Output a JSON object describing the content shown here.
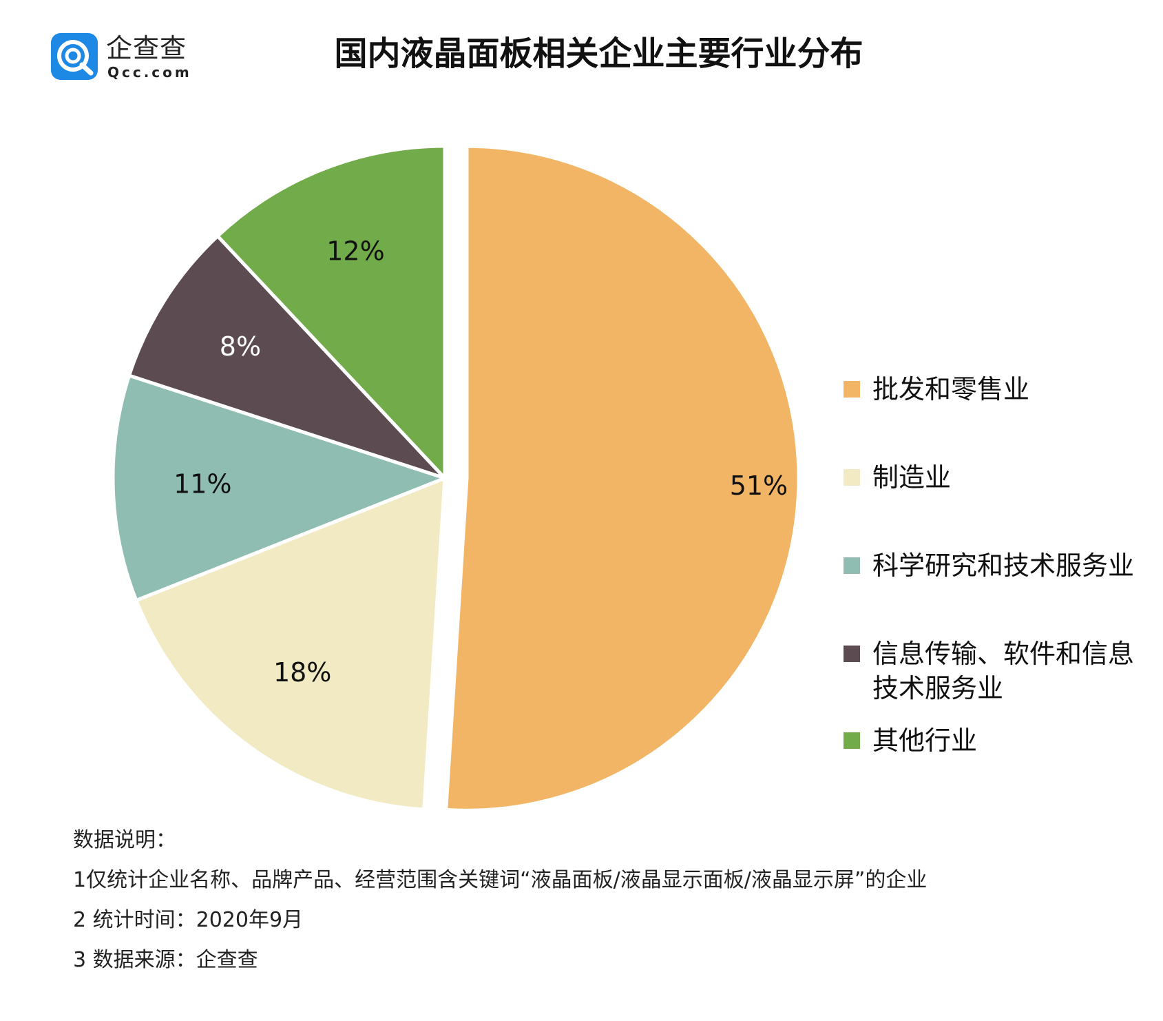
{
  "header": {
    "logo_cn": "企查查",
    "logo_en": "Qcc.com",
    "logo_color": "#1E88E5"
  },
  "chart_data": {
    "type": "pie",
    "title": "国内液晶面板相关企业主要行业分布",
    "unit": "%",
    "legend_position": "right",
    "slices": [
      {
        "name": "批发和零售业",
        "value": 51,
        "label": "51%",
        "color": "#F2B565"
      },
      {
        "name": "制造业",
        "value": 18,
        "label": "18%",
        "color": "#F2EAC2"
      },
      {
        "name": "科学研究和技术服务业",
        "value": 11,
        "label": "11%",
        "color": "#8FBDB2"
      },
      {
        "name": "信息传输、软件和信息技术服务业",
        "value": 8,
        "label": "8%",
        "color": "#5C4B51"
      },
      {
        "name": "其他行业",
        "value": 12,
        "label": "12%",
        "color": "#72AB49"
      }
    ]
  },
  "legend": {
    "items": [
      {
        "line1": "批发和零售业",
        "line2": ""
      },
      {
        "line1": "制造业",
        "line2": ""
      },
      {
        "line1": "科学研究和技术服务业",
        "line2": ""
      },
      {
        "line1": "信息传输、软件和信息",
        "line2": "技术服务业"
      },
      {
        "line1": "其他行业",
        "line2": ""
      }
    ]
  },
  "notes": {
    "heading": "数据说明：",
    "lines": [
      "1仅统计企业名称、品牌产品、经营范围含关键词“液晶面板/液晶显示面板/液晶显示屏”的企业",
      "2 统计时间：2020年9月",
      "3 数据来源：企查查"
    ]
  }
}
